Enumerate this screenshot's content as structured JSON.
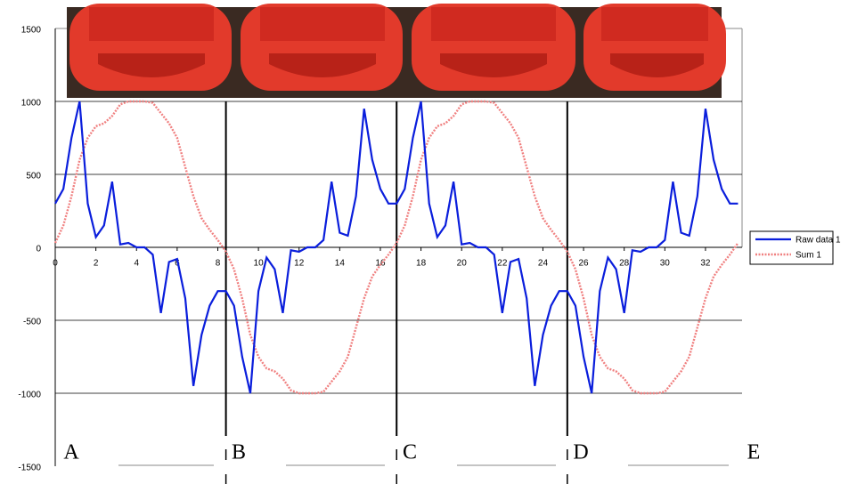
{
  "chart_data": {
    "type": "line",
    "x": [
      0,
      0.4,
      0.8,
      1.2,
      1.6,
      2,
      2.4,
      2.8,
      3.2,
      3.6,
      4,
      4.4,
      4.8,
      5.2,
      5.6,
      6,
      6.4,
      6.8,
      7.2,
      7.6,
      8,
      8.4,
      8.8,
      9.2,
      9.6,
      10,
      10.4,
      10.8,
      11.2,
      11.6,
      12,
      12.4,
      12.8,
      13.2,
      13.6,
      14,
      14.4,
      14.8,
      15.2,
      15.6,
      16,
      16.4,
      16.8,
      17.2,
      17.6,
      18,
      18.4,
      18.8,
      19.2,
      19.6,
      20,
      20.4,
      20.8,
      21.2,
      21.6,
      22,
      22.4,
      22.8,
      23.2,
      23.6,
      24,
      24.4,
      24.8,
      25.2,
      25.6,
      26,
      26.4,
      26.8,
      27.2,
      27.6,
      28,
      28.4,
      28.8,
      29.2,
      29.6,
      30,
      30.4,
      30.8,
      31.2,
      31.6,
      32,
      32.4,
      32.8,
      33.2,
      33.6
    ],
    "series": [
      {
        "name": "Raw data 1",
        "color": "#0a1edc",
        "values": [
          300,
          400,
          750,
          1000,
          300,
          70,
          150,
          450,
          20,
          30,
          0,
          0,
          -50,
          -450,
          -100,
          -80,
          -350,
          -950,
          -600,
          -400,
          -300,
          -300,
          -400,
          -750,
          -1000,
          -300,
          -70,
          -150,
          -450,
          -20,
          -30,
          0,
          0,
          50,
          450,
          100,
          80,
          350,
          950,
          600,
          400,
          300,
          300,
          400,
          750,
          1000,
          300,
          70,
          150,
          450,
          20,
          30,
          0,
          0,
          -50,
          -450,
          -100,
          -80,
          -350,
          -950,
          -600,
          -400,
          -300,
          -300,
          -400,
          -750,
          -1000,
          -300,
          -70,
          -150,
          -450,
          -20,
          -30,
          0,
          0,
          50,
          450,
          100,
          80,
          350,
          950,
          600,
          400,
          300,
          300
        ]
      },
      {
        "name": "Sum 1",
        "color": "#f08080",
        "values": [
          30,
          150,
          350,
          600,
          750,
          830,
          850,
          900,
          980,
          1000,
          1000,
          1000,
          990,
          920,
          850,
          750,
          550,
          350,
          200,
          120,
          50,
          -30,
          -150,
          -350,
          -600,
          -750,
          -830,
          -850,
          -900,
          -980,
          -1000,
          -1000,
          -1000,
          -990,
          -920,
          -850,
          -750,
          -550,
          -350,
          -200,
          -120,
          -50,
          30,
          150,
          350,
          600,
          750,
          830,
          850,
          900,
          980,
          1000,
          1000,
          1000,
          990,
          920,
          850,
          750,
          550,
          350,
          200,
          120,
          50,
          -30,
          -150,
          -350,
          -600,
          -750,
          -830,
          -850,
          -900,
          -980,
          -1000,
          -1000,
          -1000,
          -990,
          -920,
          -850,
          -750,
          -550,
          -350,
          -200,
          -120,
          -50,
          30
        ]
      }
    ],
    "xlim": [
      0,
      33.8
    ],
    "xticks": [
      0,
      2,
      4,
      6,
      8,
      10,
      12,
      14,
      16,
      18,
      20,
      22,
      24,
      26,
      28,
      30,
      32
    ],
    "ylim": [
      -1500,
      1500
    ],
    "yticks": [
      -1500,
      -1000,
      -500,
      0,
      500,
      1000,
      1500
    ],
    "grid": true,
    "legend": "right",
    "vlines": [
      8.4,
      16.8,
      25.2
    ],
    "annotations": [
      "A",
      "B",
      "C",
      "D",
      "E"
    ]
  }
}
